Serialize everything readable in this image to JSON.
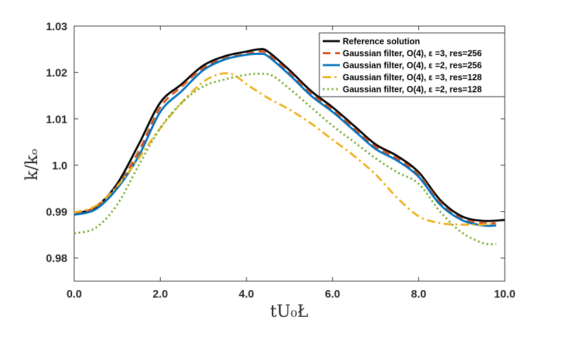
{
  "chart_data": {
    "type": "line",
    "title": "",
    "xlabel": "tU₀Ł",
    "ylabel": "k/kₒ",
    "xlim": [
      0,
      10
    ],
    "ylim": [
      0.975,
      1.03
    ],
    "x_ticks": [
      0,
      2,
      4,
      6,
      8,
      10
    ],
    "x_tick_labels": [
      "0.0",
      "2.0",
      "4.0",
      "6.0",
      "8.0",
      "10.0"
    ],
    "y_ticks": [
      0.98,
      0.99,
      1.0,
      1.01,
      1.02,
      1.03
    ],
    "y_tick_labels": [
      "0.98",
      "0.99",
      "1.0",
      "1.01",
      "1.02",
      "1.03"
    ],
    "grid": false,
    "legend_position": "top-right",
    "series": [
      {
        "name": "Reference solution",
        "color": "#000000",
        "dash": "solid",
        "x": [
          0,
          0.5,
          1,
          1.5,
          2,
          2.5,
          3,
          3.5,
          4,
          4.3,
          4.5,
          5,
          5.5,
          6,
          6.5,
          7,
          7.5,
          8,
          8.5,
          9,
          9.5,
          10
        ],
        "y": [
          0.9895,
          0.991,
          0.996,
          1.0045,
          1.0135,
          1.0175,
          1.0215,
          1.0235,
          1.0245,
          1.025,
          1.0245,
          1.0205,
          1.016,
          1.0125,
          1.0085,
          1.0045,
          1.002,
          0.9985,
          0.9925,
          0.989,
          0.988,
          0.9882
        ]
      },
      {
        "name": "Gaussian filter, O(4), ε =3, res=256",
        "color": "#d95319",
        "dash": "dashed",
        "x": [
          0,
          0.5,
          1,
          1.5,
          2,
          2.5,
          3,
          3.5,
          4,
          4.3,
          4.5,
          5,
          5.5,
          6,
          6.5,
          7,
          7.5,
          8,
          8.5,
          9,
          9.5,
          9.8
        ],
        "y": [
          0.9895,
          0.991,
          0.9955,
          1.003,
          1.0125,
          1.017,
          1.021,
          1.023,
          1.024,
          1.0245,
          1.024,
          1.02,
          1.0155,
          1.012,
          1.008,
          1.004,
          1.0015,
          0.998,
          0.992,
          0.9885,
          0.9875,
          0.9875
        ]
      },
      {
        "name": "Gaussian filter, O(4), ε =2, res=256",
        "color": "#0072bd",
        "dash": "solid",
        "x": [
          0,
          0.5,
          1,
          1.5,
          2,
          2.5,
          3,
          3.5,
          4,
          4.3,
          4.5,
          5,
          5.5,
          6,
          6.5,
          7,
          7.5,
          8,
          8.5,
          9,
          9.5,
          9.8
        ],
        "y": [
          0.9893,
          0.9905,
          0.995,
          1.002,
          1.0115,
          1.016,
          1.0205,
          1.0228,
          1.0238,
          1.024,
          1.0235,
          1.0195,
          1.015,
          1.0115,
          1.0075,
          1.0035,
          1.001,
          0.9975,
          0.9915,
          0.9882,
          0.987,
          0.987
        ]
      },
      {
        "name": "Gaussian filter, O(4), ε =3, res=128",
        "color": "#edb120",
        "dash": "dashdot",
        "x": [
          0,
          0.5,
          1,
          1.5,
          2,
          2.5,
          3,
          3.4,
          3.7,
          4,
          4.5,
          5,
          5.5,
          6,
          6.5,
          7,
          7.5,
          8,
          8.5,
          9,
          9.5,
          9.8
        ],
        "y": [
          0.9898,
          0.9912,
          0.9955,
          1.0015,
          1.008,
          1.0135,
          1.018,
          1.0197,
          1.0195,
          1.0175,
          1.0145,
          1.012,
          1.009,
          1.0055,
          1.002,
          0.998,
          0.993,
          0.989,
          0.9875,
          0.9872,
          0.9872,
          0.9875
        ]
      },
      {
        "name": "Gaussian filter, O(4), ε =2, res=128",
        "color": "#77ac30",
        "dash": "dotted",
        "x": [
          0,
          0.5,
          1,
          1.5,
          2,
          2.5,
          3,
          3.5,
          4,
          4.3,
          4.6,
          5,
          5.5,
          6,
          6.5,
          7,
          7.5,
          8,
          8.5,
          9,
          9.5,
          9.8
        ],
        "y": [
          0.9853,
          0.9865,
          0.9915,
          1.0,
          1.008,
          1.0135,
          1.017,
          1.0185,
          1.0195,
          1.0197,
          1.0193,
          1.0165,
          1.0125,
          1.0085,
          1.005,
          1.0015,
          0.9985,
          0.996,
          0.99,
          0.9855,
          0.9832,
          0.983
        ]
      }
    ]
  }
}
